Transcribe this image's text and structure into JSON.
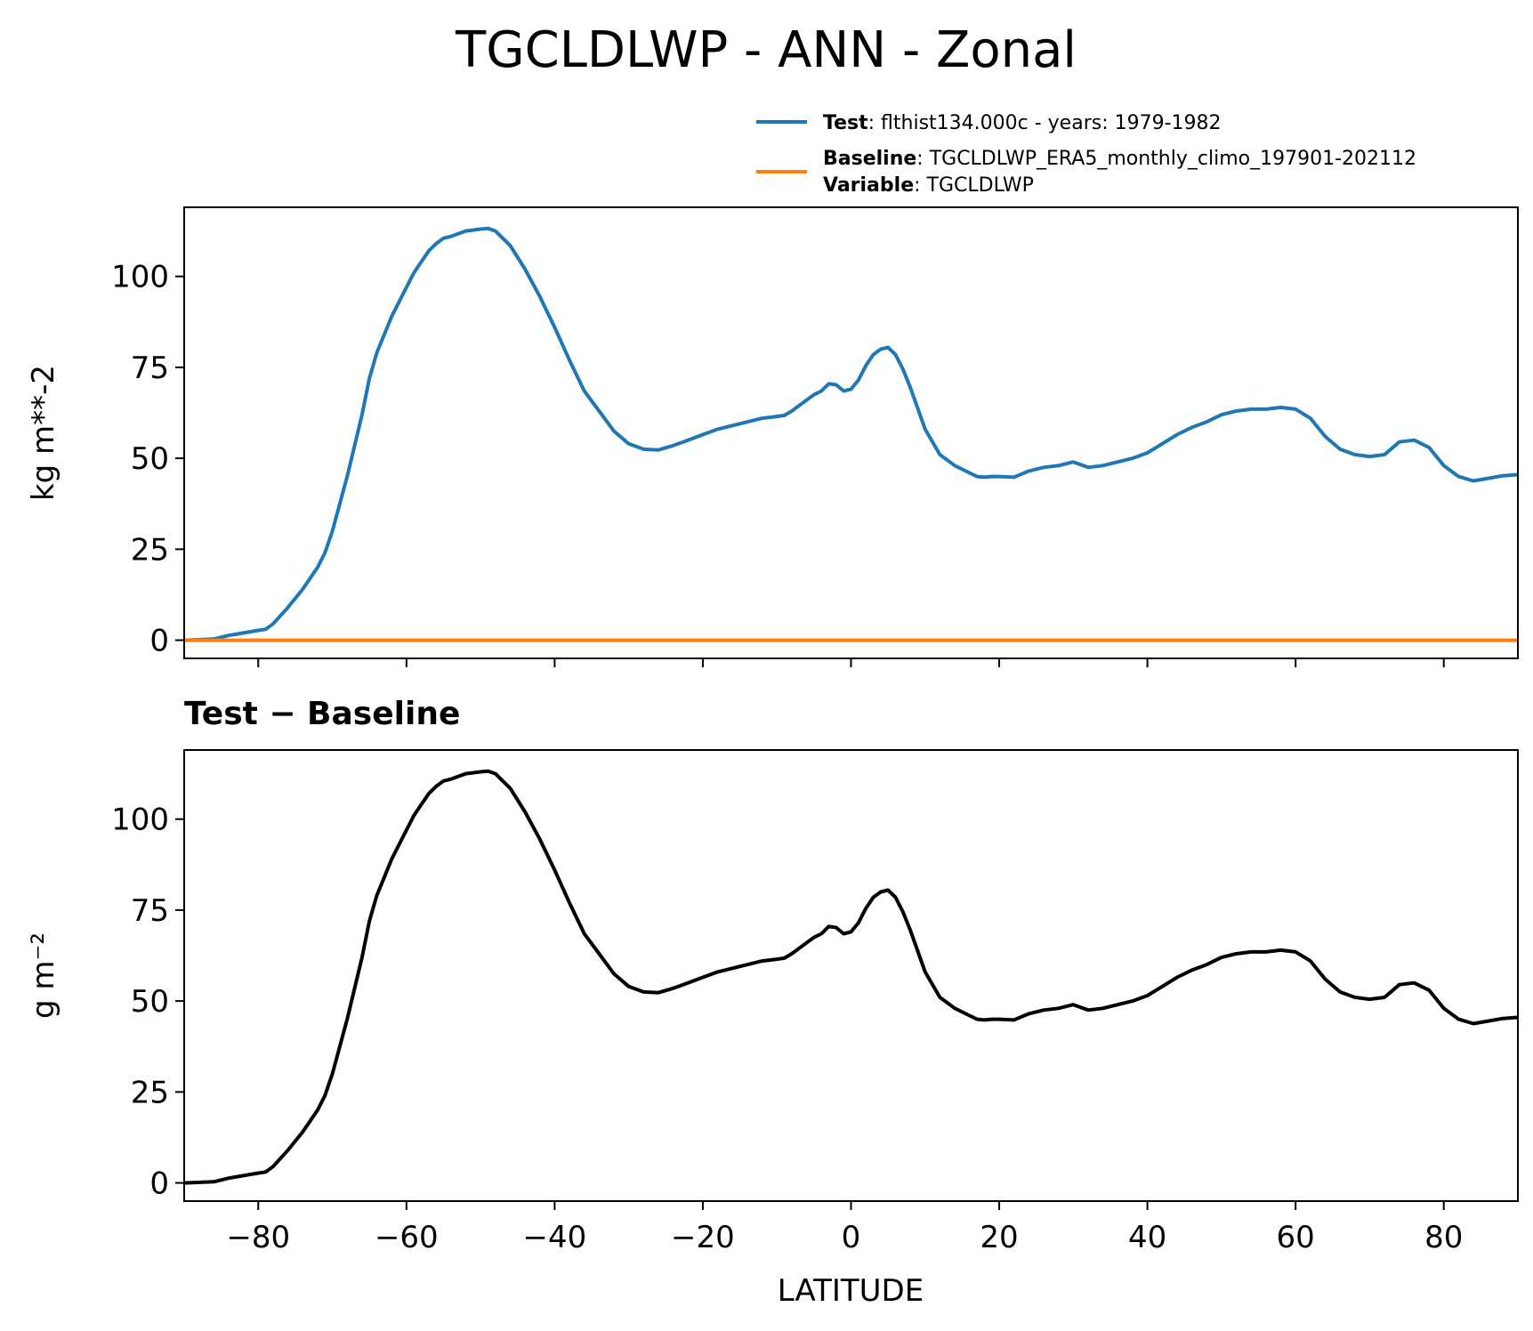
{
  "chart_data": [
    {
      "type": "line",
      "title": "TGCLDLWP - ANN - Zonal",
      "xlabel": "",
      "ylabel": "kg m**-2",
      "xlim": [
        -90,
        90
      ],
      "ylim": [
        -5,
        119
      ],
      "xticks": [
        -80,
        -60,
        -40,
        -20,
        0,
        20,
        40,
        60,
        80
      ],
      "yticks": [
        0,
        25,
        50,
        75,
        100
      ],
      "show_xtick_labels": false,
      "grid": false,
      "legend": {
        "placement": "above-right",
        "entries": [
          {
            "bold": "Test",
            "text": ": flthist134.000c - years: 1979-1982",
            "color": "#1f77b4"
          },
          {
            "bold": "Baseline",
            "text": ": TGCLDLWP_ERA5_monthly_climo_197901-202112",
            "bold2": "Variable",
            "text2": ": TGCLDLWP",
            "color": "#ff7f0e"
          }
        ]
      },
      "series": [
        {
          "name": "Test",
          "color": "#1f77b4",
          "x": [
            -90,
            -86,
            -84,
            -82,
            -80,
            -79,
            -78,
            -76,
            -74,
            -72,
            -71,
            -70,
            -68,
            -66,
            -65,
            -64,
            -62,
            -60,
            -59,
            -58,
            -57,
            -56,
            -55,
            -54,
            -52,
            -50,
            -49,
            -48,
            -47,
            -46,
            -44,
            -42,
            -40,
            -38,
            -36,
            -34,
            -32,
            -30,
            -28,
            -26,
            -24,
            -22,
            -20,
            -18,
            -16,
            -14,
            -12,
            -10,
            -9,
            -8,
            -6,
            -5,
            -4,
            -3,
            -2,
            -1,
            0,
            1,
            2,
            3,
            4,
            5,
            6,
            7,
            8,
            10,
            12,
            14,
            16,
            17,
            18,
            19,
            20,
            22,
            24,
            26,
            28,
            30,
            32,
            34,
            36,
            38,
            40,
            42,
            44,
            46,
            48,
            50,
            52,
            54,
            56,
            58,
            60,
            62,
            64,
            66,
            68,
            70,
            72,
            74,
            76,
            78,
            80,
            82,
            84,
            86,
            88,
            90
          ],
          "y": [
            0,
            0.3,
            1.3,
            2.0,
            2.7,
            3.0,
            4.5,
            9.0,
            14.0,
            20.0,
            24.0,
            30.0,
            45.0,
            62.0,
            72.0,
            79.0,
            89.0,
            97.0,
            101.0,
            104.0,
            107.0,
            109.0,
            110.5,
            111.0,
            112.5,
            113.0,
            113.2,
            112.5,
            110.5,
            108.5,
            102.0,
            94.5,
            86.0,
            77.0,
            68.5,
            63.0,
            57.5,
            54.0,
            52.5,
            52.3,
            53.5,
            55.0,
            56.5,
            58.0,
            59.0,
            60.0,
            61.0,
            61.5,
            61.8,
            63.0,
            66.0,
            67.5,
            68.5,
            70.5,
            70.2,
            68.5,
            69.0,
            71.5,
            75.5,
            78.5,
            80.0,
            80.5,
            78.5,
            74.5,
            69.5,
            58.0,
            51.0,
            48.0,
            46.0,
            45.0,
            44.8,
            45.0,
            45.0,
            44.8,
            46.5,
            47.5,
            48.0,
            49.0,
            47.5,
            48.0,
            49.0,
            50.0,
            51.5,
            54.0,
            56.5,
            58.5,
            60.0,
            62.0,
            63.0,
            63.5,
            63.5,
            64.0,
            63.5,
            61.0,
            56.0,
            52.5,
            51.0,
            50.5,
            51.0,
            54.5,
            55.0,
            53.0,
            48.0,
            45.0,
            43.8,
            44.5,
            45.2,
            45.5
          ]
        },
        {
          "name": "Baseline",
          "color": "#ff7f0e",
          "x": [
            -90,
            90
          ],
          "y": [
            0,
            0
          ]
        }
      ]
    },
    {
      "type": "line",
      "title": "Test − Baseline",
      "xlabel": "LATITUDE",
      "ylabel": "g m⁻²",
      "xlim": [
        -90,
        90
      ],
      "ylim": [
        -5,
        119
      ],
      "xticks": [
        -80,
        -60,
        -40,
        -20,
        0,
        20,
        40,
        60,
        80
      ],
      "xtick_labels": [
        "−80",
        "−60",
        "−40",
        "−20",
        "0",
        "20",
        "40",
        "60",
        "80"
      ],
      "yticks": [
        0,
        25,
        50,
        75,
        100
      ],
      "show_xtick_labels": true,
      "grid": false,
      "series": [
        {
          "color": "#000000",
          "x": [
            -90,
            -86,
            -84,
            -82,
            -80,
            -79,
            -78,
            -76,
            -74,
            -72,
            -71,
            -70,
            -68,
            -66,
            -65,
            -64,
            -62,
            -60,
            -59,
            -58,
            -57,
            -56,
            -55,
            -54,
            -52,
            -50,
            -49,
            -48,
            -47,
            -46,
            -44,
            -42,
            -40,
            -38,
            -36,
            -34,
            -32,
            -30,
            -28,
            -26,
            -24,
            -22,
            -20,
            -18,
            -16,
            -14,
            -12,
            -10,
            -9,
            -8,
            -6,
            -5,
            -4,
            -3,
            -2,
            -1,
            0,
            1,
            2,
            3,
            4,
            5,
            6,
            7,
            8,
            10,
            12,
            14,
            16,
            17,
            18,
            19,
            20,
            22,
            24,
            26,
            28,
            30,
            32,
            34,
            36,
            38,
            40,
            42,
            44,
            46,
            48,
            50,
            52,
            54,
            56,
            58,
            60,
            62,
            64,
            66,
            68,
            70,
            72,
            74,
            76,
            78,
            80,
            82,
            84,
            86,
            88,
            90
          ],
          "y": [
            0,
            0.3,
            1.3,
            2.0,
            2.7,
            3.0,
            4.5,
            9.0,
            14.0,
            20.0,
            24.0,
            30.0,
            45.0,
            62.0,
            72.0,
            79.0,
            89.0,
            97.0,
            101.0,
            104.0,
            107.0,
            109.0,
            110.5,
            111.0,
            112.5,
            113.0,
            113.2,
            112.5,
            110.5,
            108.5,
            102.0,
            94.5,
            86.0,
            77.0,
            68.5,
            63.0,
            57.5,
            54.0,
            52.5,
            52.3,
            53.5,
            55.0,
            56.5,
            58.0,
            59.0,
            60.0,
            61.0,
            61.5,
            61.8,
            63.0,
            66.0,
            67.5,
            68.5,
            70.5,
            70.2,
            68.5,
            69.0,
            71.5,
            75.5,
            78.5,
            80.0,
            80.5,
            78.5,
            74.5,
            69.5,
            58.0,
            51.0,
            48.0,
            46.0,
            45.0,
            44.8,
            45.0,
            45.0,
            44.8,
            46.5,
            47.5,
            48.0,
            49.0,
            47.5,
            48.0,
            49.0,
            50.0,
            51.5,
            54.0,
            56.5,
            58.5,
            60.0,
            62.0,
            63.0,
            63.5,
            63.5,
            64.0,
            63.5,
            61.0,
            56.0,
            52.5,
            51.0,
            50.5,
            51.0,
            54.5,
            55.0,
            53.0,
            48.0,
            45.0,
            43.8,
            44.5,
            45.2,
            45.5
          ]
        }
      ]
    }
  ]
}
